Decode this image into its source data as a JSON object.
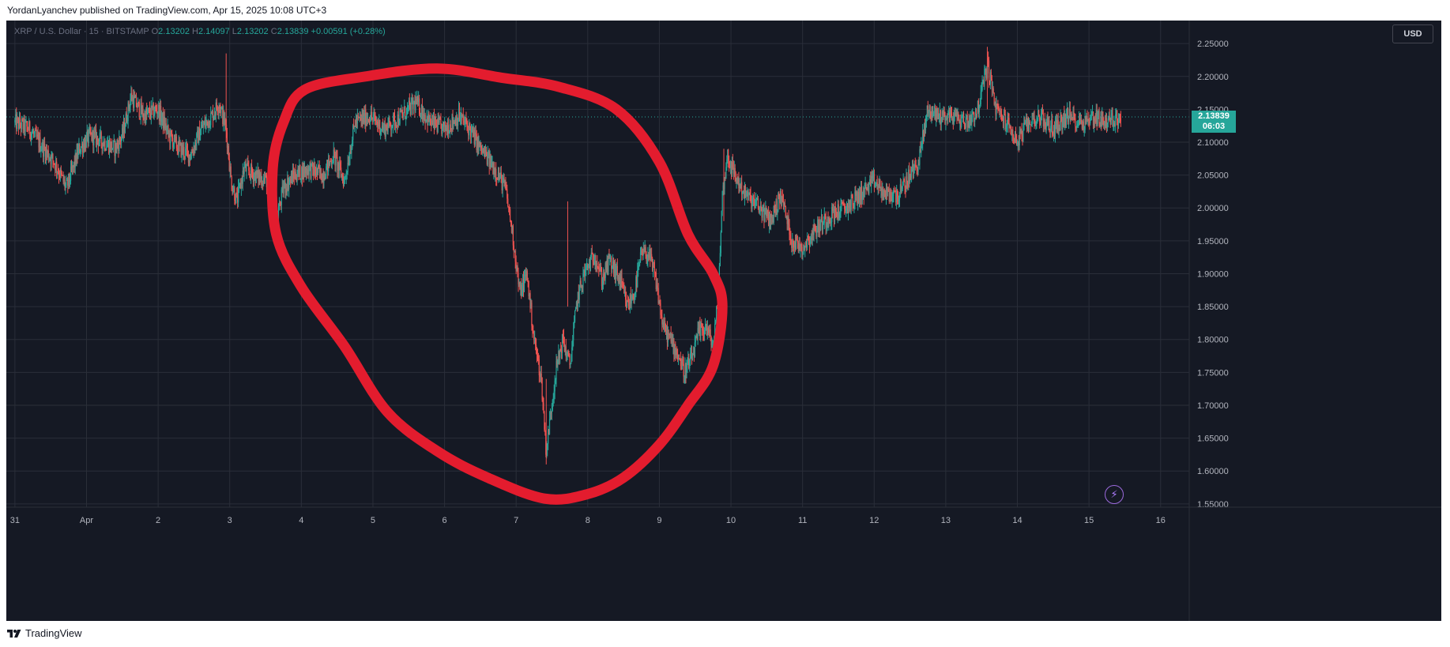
{
  "header": {
    "publisher_line": "YordanLyanchev published on TradingView.com, Apr 15, 2025 10:08 UTC+3"
  },
  "legend": {
    "symbol": "XRP / U.S. Dollar · 15 · BITSTAMP",
    "o_label": "O",
    "o_value": "2.13202",
    "h_label": "H",
    "h_value": "2.14097",
    "l_label": "L",
    "l_value": "2.13202",
    "c_label": "C",
    "c_value": "2.13839",
    "change": "+0.00591 (+0.28%)"
  },
  "currency_button": "USD",
  "last_price": {
    "price": "2.13839",
    "countdown": "06:03"
  },
  "footer": {
    "brand": "TradingView"
  },
  "colors": {
    "background": "#151924",
    "grid": "#2a2e39",
    "up": "#26a69a",
    "down": "#ef5350",
    "annotation": "#e31c2e",
    "axis_text": "#b2b5be"
  },
  "icons": {
    "footer_logo": "tradingview-logo-icon",
    "bolt": "lightning-icon"
  },
  "chart_data": {
    "type": "candlestick",
    "title": "",
    "timeframe": "15",
    "y_ticks": [
      "2.25000",
      "2.20000",
      "2.15000",
      "2.10000",
      "2.05000",
      "2.00000",
      "1.95000",
      "1.90000",
      "1.85000",
      "1.80000",
      "1.75000",
      "1.70000",
      "1.65000",
      "1.60000",
      "1.55000"
    ],
    "ylim": [
      1.545,
      2.285
    ],
    "x_ticks": [
      "31",
      "Apr",
      "2",
      "3",
      "4",
      "5",
      "6",
      "7",
      "8",
      "9",
      "10",
      "11",
      "12",
      "13",
      "14",
      "15",
      "16"
    ],
    "xlim": [
      -0.12,
      16.4
    ],
    "grid": true,
    "price_path": [
      [
        0.0,
        2.13
      ],
      [
        0.2,
        2.12
      ],
      [
        0.4,
        2.09
      ],
      [
        0.55,
        2.07
      ],
      [
        0.72,
        2.03
      ],
      [
        0.9,
        2.09
      ],
      [
        1.05,
        2.11
      ],
      [
        1.25,
        2.1
      ],
      [
        1.4,
        2.09
      ],
      [
        1.5,
        2.11
      ],
      [
        1.62,
        2.17
      ],
      [
        1.8,
        2.14
      ],
      [
        2.0,
        2.15
      ],
      [
        2.15,
        2.11
      ],
      [
        2.3,
        2.09
      ],
      [
        2.45,
        2.08
      ],
      [
        2.6,
        2.12
      ],
      [
        2.75,
        2.14
      ],
      [
        2.85,
        2.16
      ],
      [
        2.95,
        2.12
      ],
      [
        3.02,
        2.04
      ],
      [
        3.1,
        2.01
      ],
      [
        3.2,
        2.06
      ],
      [
        3.35,
        2.05
      ],
      [
        3.55,
        2.04
      ],
      [
        3.65,
        1.98
      ],
      [
        3.75,
        2.03
      ],
      [
        3.9,
        2.05
      ],
      [
        4.1,
        2.06
      ],
      [
        4.3,
        2.05
      ],
      [
        4.45,
        2.08
      ],
      [
        4.6,
        2.04
      ],
      [
        4.75,
        2.13
      ],
      [
        4.95,
        2.14
      ],
      [
        5.15,
        2.12
      ],
      [
        5.4,
        2.14
      ],
      [
        5.6,
        2.16
      ],
      [
        5.8,
        2.13
      ],
      [
        6.0,
        2.12
      ],
      [
        6.2,
        2.14
      ],
      [
        6.35,
        2.12
      ],
      [
        6.5,
        2.09
      ],
      [
        6.7,
        2.06
      ],
      [
        6.85,
        2.03
      ],
      [
        6.95,
        1.96
      ],
      [
        7.05,
        1.87
      ],
      [
        7.15,
        1.9
      ],
      [
        7.25,
        1.8
      ],
      [
        7.35,
        1.74
      ],
      [
        7.42,
        1.63
      ],
      [
        7.55,
        1.75
      ],
      [
        7.65,
        1.8
      ],
      [
        7.75,
        1.76
      ],
      [
        7.85,
        1.86
      ],
      [
        7.95,
        1.9
      ],
      [
        8.1,
        1.93
      ],
      [
        8.2,
        1.89
      ],
      [
        8.3,
        1.92
      ],
      [
        8.45,
        1.89
      ],
      [
        8.55,
        1.85
      ],
      [
        8.65,
        1.87
      ],
      [
        8.75,
        1.93
      ],
      [
        8.85,
        1.93
      ],
      [
        8.95,
        1.89
      ],
      [
        9.05,
        1.82
      ],
      [
        9.15,
        1.8
      ],
      [
        9.25,
        1.78
      ],
      [
        9.35,
        1.75
      ],
      [
        9.45,
        1.77
      ],
      [
        9.55,
        1.81
      ],
      [
        9.65,
        1.82
      ],
      [
        9.75,
        1.79
      ],
      [
        9.82,
        1.86
      ],
      [
        9.88,
        2.02
      ],
      [
        9.95,
        2.08
      ],
      [
        10.05,
        2.05
      ],
      [
        10.2,
        2.02
      ],
      [
        10.4,
        2.0
      ],
      [
        10.55,
        1.98
      ],
      [
        10.7,
        2.02
      ],
      [
        10.85,
        1.95
      ],
      [
        11.0,
        1.94
      ],
      [
        11.2,
        1.97
      ],
      [
        11.4,
        1.99
      ],
      [
        11.6,
        2.0
      ],
      [
        11.8,
        2.02
      ],
      [
        12.0,
        2.04
      ],
      [
        12.15,
        2.02
      ],
      [
        12.35,
        2.02
      ],
      [
        12.5,
        2.05
      ],
      [
        12.62,
        2.07
      ],
      [
        12.75,
        2.15
      ],
      [
        12.9,
        2.14
      ],
      [
        13.1,
        2.14
      ],
      [
        13.3,
        2.13
      ],
      [
        13.45,
        2.15
      ],
      [
        13.58,
        2.22
      ],
      [
        13.7,
        2.15
      ],
      [
        13.85,
        2.13
      ],
      [
        14.0,
        2.1
      ],
      [
        14.15,
        2.13
      ],
      [
        14.3,
        2.14
      ],
      [
        14.5,
        2.12
      ],
      [
        14.7,
        2.14
      ],
      [
        14.9,
        2.13
      ],
      [
        15.1,
        2.14
      ],
      [
        15.25,
        2.13
      ],
      [
        15.45,
        2.14
      ]
    ],
    "last_close": 2.13839,
    "annotation": {
      "shape": "freehand-ellipse",
      "color": "#e31c2e"
    }
  }
}
